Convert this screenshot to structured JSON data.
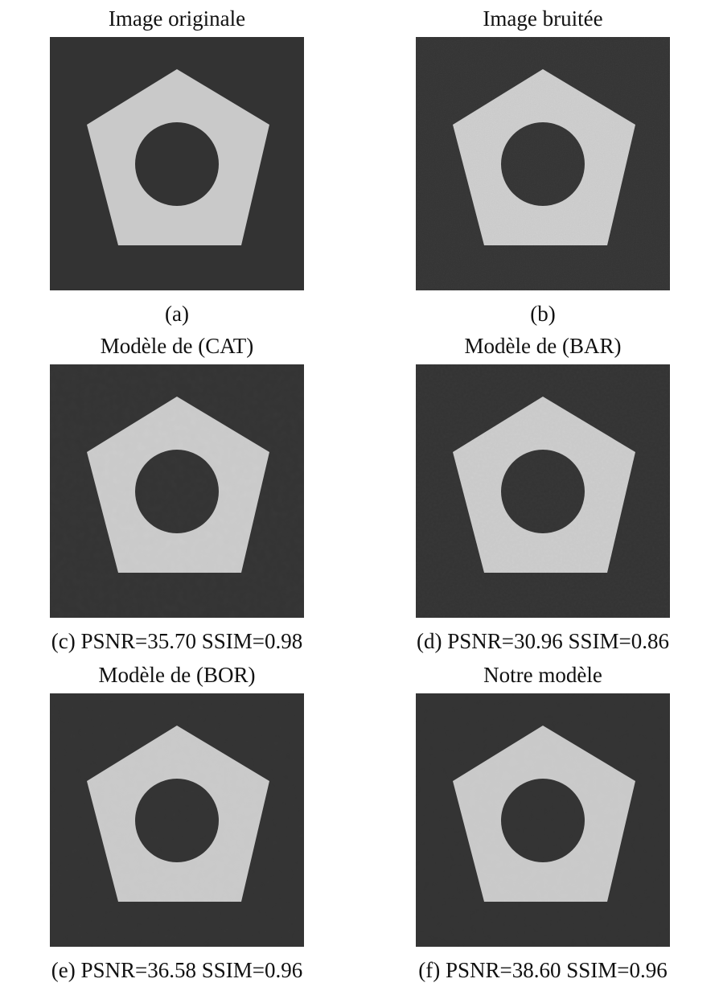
{
  "panels": [
    {
      "title": "Image originale",
      "caption": "(a)"
    },
    {
      "title": "Image bruitée",
      "caption": "(b)"
    },
    {
      "title": "Modèle de (CAT)",
      "caption": "(c) PSNR=35.70 SSIM=0.98"
    },
    {
      "title": "Modèle de (BAR)",
      "caption": "(d) PSNR=30.96 SSIM=0.86"
    },
    {
      "title": "Modèle de (BOR)",
      "caption": "(e) PSNR=36.58 SSIM=0.96"
    },
    {
      "title": "Notre modèle",
      "caption": "(f) PSNR=38.60 SSIM=0.96"
    }
  ]
}
